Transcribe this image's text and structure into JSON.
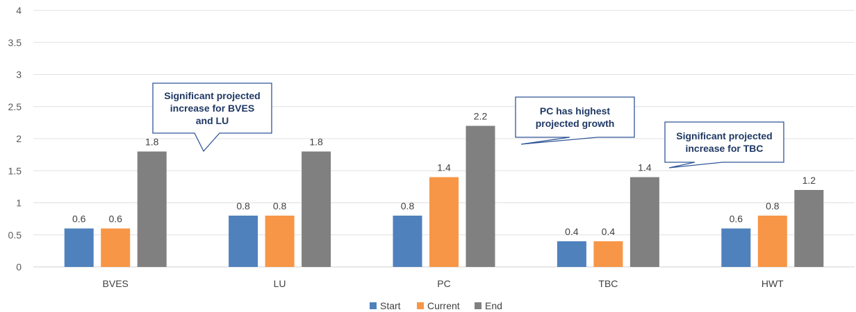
{
  "chart_data": {
    "type": "bar",
    "categories": [
      "BVES",
      "LU",
      "PC",
      "TBC",
      "HWT"
    ],
    "series": [
      {
        "name": "Start",
        "color": "#4f81bd",
        "values": [
          0.6,
          0.8,
          0.8,
          0.4,
          0.6
        ]
      },
      {
        "name": "Current",
        "color": "#f79646",
        "values": [
          0.6,
          0.8,
          1.4,
          0.4,
          0.8
        ]
      },
      {
        "name": "End",
        "color": "#808080",
        "values": [
          1.8,
          1.8,
          2.2,
          1.4,
          1.2
        ]
      }
    ],
    "yticks": [
      "0",
      "0.5",
      "1",
      "1.5",
      "2",
      "2.5",
      "3",
      "3.5",
      "4"
    ],
    "ylim": [
      0,
      4
    ],
    "grid": true,
    "legend": "bottom-center",
    "annotations": [
      {
        "lines": [
          "Significant projected",
          "increase for BVES",
          "and LU"
        ]
      },
      {
        "lines": [
          "PC has highest",
          "projected growth"
        ]
      },
      {
        "lines": [
          "Significant projected",
          "increase for TBC"
        ]
      }
    ]
  }
}
